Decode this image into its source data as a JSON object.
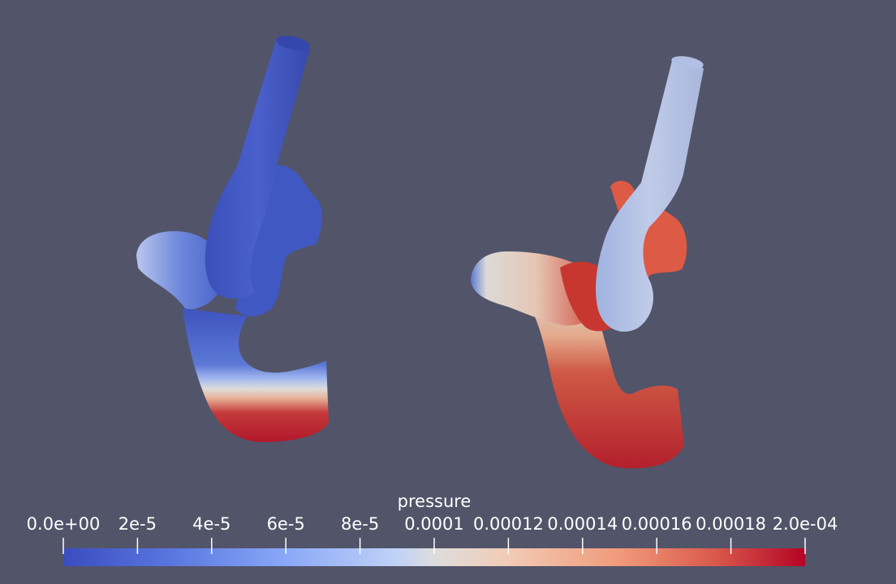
{
  "legend": {
    "title": "pressure",
    "range": [
      0,
      0.0002
    ],
    "colormap": "Cool to Warm",
    "colors": {
      "low": "#3b4cc0",
      "mid": "#dddddd",
      "high": "#b40426"
    },
    "ticks": [
      {
        "value": 0.0,
        "label": "0.0e+00"
      },
      {
        "value": 2e-05,
        "label": "2e-5"
      },
      {
        "value": 4e-05,
        "label": "4e-5"
      },
      {
        "value": 6e-05,
        "label": "6e-5"
      },
      {
        "value": 8e-05,
        "label": "8e-5"
      },
      {
        "value": 0.0001,
        "label": "0.0001"
      },
      {
        "value": 0.00012,
        "label": "0.00012"
      },
      {
        "value": 0.00014,
        "label": "0.00014"
      },
      {
        "value": 0.00016,
        "label": "0.00016"
      },
      {
        "value": 0.00018,
        "label": "0.00018"
      },
      {
        "value": 0.0002,
        "label": "2.0e-04"
      }
    ]
  },
  "background_color": "#525469"
}
